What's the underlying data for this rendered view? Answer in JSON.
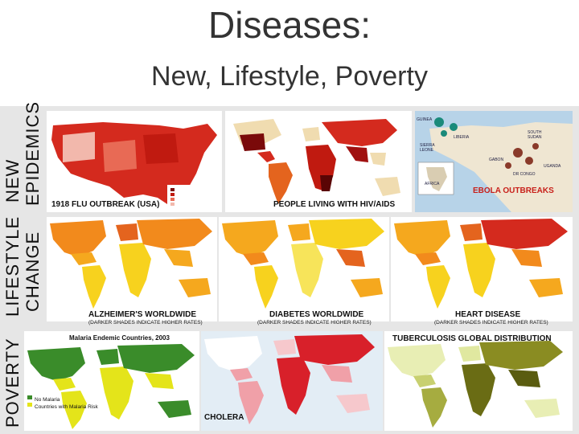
{
  "title": "Diseases:",
  "subtitle": "New, Lifestyle, Poverty",
  "rows": {
    "new": [
      "NEW",
      "EPIDEMICS"
    ],
    "lifestyle": [
      "LIFESTYLE",
      "CHANGE"
    ],
    "poverty": [
      "POVERTY"
    ]
  },
  "maps": {
    "flu": "1918 FLU OUTBREAK (USA)",
    "hiv": "PEOPLE LIVING WITH HIV/AIDS",
    "ebola": "EBOLA OUTBREAKS",
    "alzheimers": "ALZHEIMER'S WORLDWIDE",
    "alzheimers_note": "(DARKER SHADES INDICATE HIGHER RATES)",
    "diabetes": "DIABETES WORLDWIDE",
    "diabetes_note": "(DARKER SHADES INDICATE HIGHER RATES)",
    "heart": "HEART DISEASE",
    "heart_note": "(DARKER SHADES INDICATE HIGHER RATES)",
    "malaria": "Malaria Endemic Countries, 2003",
    "malaria_legend": [
      "No Malaria",
      "Countries with Malaria Risk"
    ],
    "cholera": "CHOLERA",
    "tb": "TUBERCULOSIS GLOBAL DISTRIBUTION"
  },
  "ebola_places": [
    "GUINEA",
    "SIERRA LEONE",
    "LIBERIA",
    "SOUTH SUDAN",
    "GABON",
    "DR CONGO",
    "UGANDA",
    "AFRICA"
  ],
  "colors": {
    "flu": "#d42a1e",
    "hiv_dark": "#7a0a0a",
    "lifestyle_mid": "#f28a1c",
    "lifestyle_light": "#f7d21e",
    "malaria_green": "#3a8c2a",
    "malaria_yellow": "#e4e41a",
    "cholera_red": "#d8202a",
    "tb_olive": "#8a8c22"
  }
}
